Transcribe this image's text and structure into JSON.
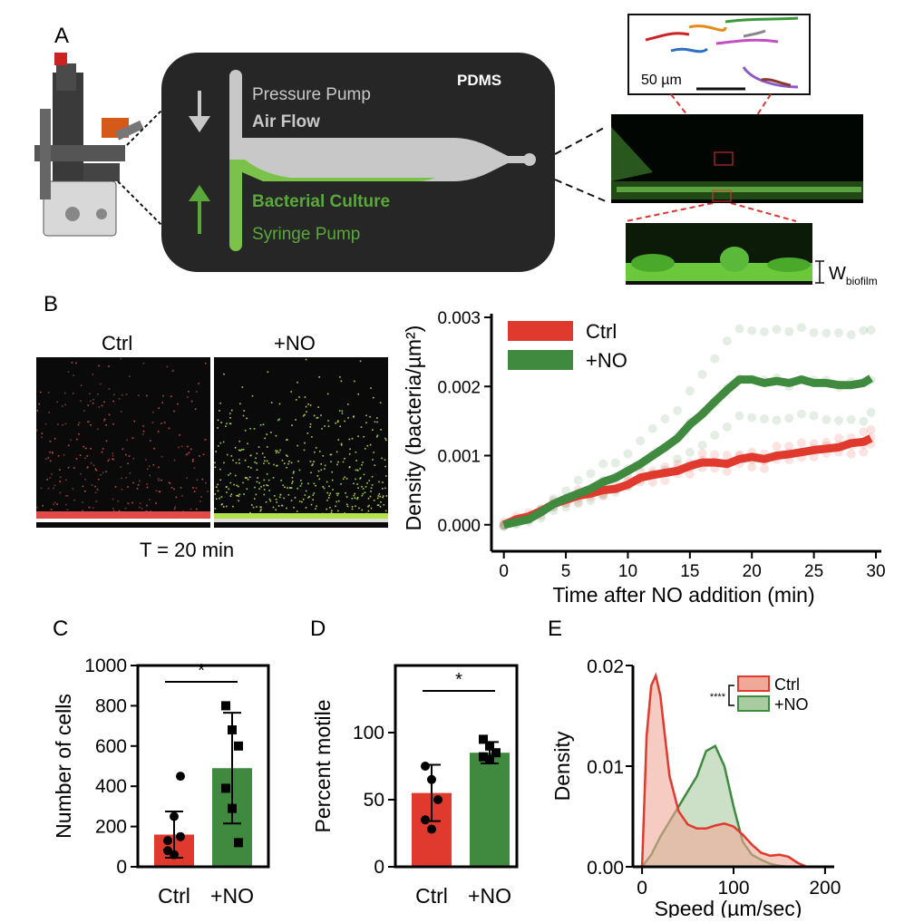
{
  "panels": {
    "a": {
      "letter": "A",
      "chip": {
        "material": "PDMS",
        "top_line1": "Pressure Pump",
        "top_line2": "Air Flow",
        "bottom_line1": "Bacterial Culture",
        "bottom_line2": "Syringe Pump"
      },
      "scale_bar": "50 µm",
      "w_label_main": "W",
      "w_label_sub": "biofilm"
    },
    "b": {
      "letter": "B",
      "image_label_ctrl": "Ctrl",
      "image_label_no": "+NO",
      "time_label": "T = 20 min"
    },
    "c": {
      "letter": "C"
    },
    "d": {
      "letter": "D"
    },
    "e": {
      "letter": "E"
    }
  },
  "colors": {
    "ctrl": "#e03a2f",
    "no": "#3f8a3f",
    "chip_bg": "#262626",
    "channel": "#c8c8c8",
    "culture": "#7bc24a"
  },
  "chart_data": [
    {
      "id": "B",
      "type": "line",
      "xlabel": "Time after NO addition (min)",
      "ylabel": "Density (bacteria/µm²)",
      "xlim": [
        -1,
        30
      ],
      "ylim": [
        -0.0002,
        0.003
      ],
      "xticks": [
        "0",
        "5",
        "10",
        "15",
        "20",
        "25",
        "30"
      ],
      "yticks": [
        "0.000",
        "0.001",
        "0.002",
        "0.003"
      ],
      "legend_position": "top-left",
      "series": [
        {
          "name": "Ctrl",
          "color": "#e03a2f",
          "x": [
            0,
            1,
            2,
            3,
            4,
            5,
            6,
            7,
            8,
            9,
            10,
            11,
            12,
            13,
            14,
            15,
            16,
            17,
            18,
            19,
            20,
            21,
            22,
            23,
            24,
            25,
            26,
            27,
            28,
            29,
            29.6
          ],
          "y": [
            0.0,
            8e-05,
            0.00012,
            0.0002,
            0.0003,
            0.00036,
            0.00042,
            0.00045,
            0.0005,
            0.00052,
            0.00058,
            0.00068,
            0.00072,
            0.00075,
            0.00078,
            0.00085,
            0.0009,
            0.0009,
            0.00088,
            0.00095,
            0.00098,
            0.00095,
            0.001,
            0.00102,
            0.00105,
            0.00108,
            0.0011,
            0.00112,
            0.00118,
            0.0012,
            0.00125
          ]
        },
        {
          "name": "+NO",
          "color": "#3f8a3f",
          "x": [
            0,
            1,
            2,
            3,
            4,
            5,
            6,
            7,
            8,
            9,
            10,
            11,
            12,
            13,
            14,
            15,
            16,
            17,
            18,
            19,
            20,
            21,
            22,
            23,
            24,
            25,
            26,
            27,
            28,
            29,
            29.6
          ],
          "y": [
            0.0,
            4e-05,
            8e-05,
            0.00018,
            0.0003,
            0.00038,
            0.00045,
            0.00052,
            0.00062,
            0.00068,
            0.00078,
            0.00088,
            0.001,
            0.00112,
            0.00125,
            0.00145,
            0.0016,
            0.00178,
            0.00195,
            0.0021,
            0.0021,
            0.00205,
            0.00208,
            0.00205,
            0.0021,
            0.00205,
            0.00205,
            0.00202,
            0.00202,
            0.00205,
            0.00212
          ]
        }
      ]
    },
    {
      "id": "C",
      "type": "bar",
      "categories": [
        "Ctrl",
        "+NO"
      ],
      "ylabel": "Number of cells",
      "ylim": [
        0,
        1000
      ],
      "yticks": [
        "0",
        "200",
        "400",
        "600",
        "800",
        "1000"
      ],
      "values": [
        160,
        490
      ],
      "sd": [
        115,
        275
      ],
      "points": [
        [
          130,
          250,
          450,
          80,
          60,
          150
        ],
        [
          800,
          680,
          600,
          390,
          290,
          120
        ]
      ],
      "significance": "*"
    },
    {
      "id": "D",
      "type": "bar",
      "categories": [
        "Ctrl",
        "+NO"
      ],
      "ylabel": "Percent motile",
      "ylim": [
        0,
        150
      ],
      "yticks": [
        "0",
        "50",
        "100"
      ],
      "values": [
        55,
        85
      ],
      "sd": [
        21,
        8
      ],
      "points": [
        [
          75,
          65,
          50,
          35,
          28
        ],
        [
          95,
          90,
          85,
          82,
          80
        ]
      ],
      "significance": "*"
    },
    {
      "id": "E",
      "type": "area",
      "xlabel": "Speed (µm/sec)",
      "ylabel": "Density",
      "xlim": [
        -10,
        210
      ],
      "ylim": [
        0,
        0.02
      ],
      "xticks": [
        "0",
        "100",
        "200"
      ],
      "yticks": [
        "0.00",
        "0.01",
        "0.02"
      ],
      "legend_position": "top-right",
      "significance": "****",
      "series": [
        {
          "name": "Ctrl",
          "color": "#e03a2f",
          "x": [
            0,
            5,
            10,
            15,
            20,
            25,
            30,
            40,
            50,
            60,
            70,
            80,
            90,
            100,
            110,
            120,
            130,
            140,
            150,
            160,
            170,
            180
          ],
          "y": [
            0.0,
            0.013,
            0.018,
            0.019,
            0.017,
            0.013,
            0.009,
            0.0055,
            0.0042,
            0.0038,
            0.0038,
            0.0041,
            0.0043,
            0.004,
            0.0032,
            0.0022,
            0.0014,
            0.0011,
            0.0012,
            0.001,
            0.0004,
            0.0
          ]
        },
        {
          "name": "+NO",
          "color": "#3f8a3f",
          "x": [
            0,
            10,
            20,
            30,
            40,
            50,
            60,
            70,
            80,
            90,
            100,
            110,
            120,
            130,
            140,
            150,
            160
          ],
          "y": [
            0.0,
            0.0012,
            0.003,
            0.0045,
            0.006,
            0.0075,
            0.009,
            0.0115,
            0.012,
            0.01,
            0.006,
            0.0025,
            0.0012,
            0.0007,
            0.0003,
            0.0001,
            0.0
          ]
        }
      ]
    }
  ]
}
